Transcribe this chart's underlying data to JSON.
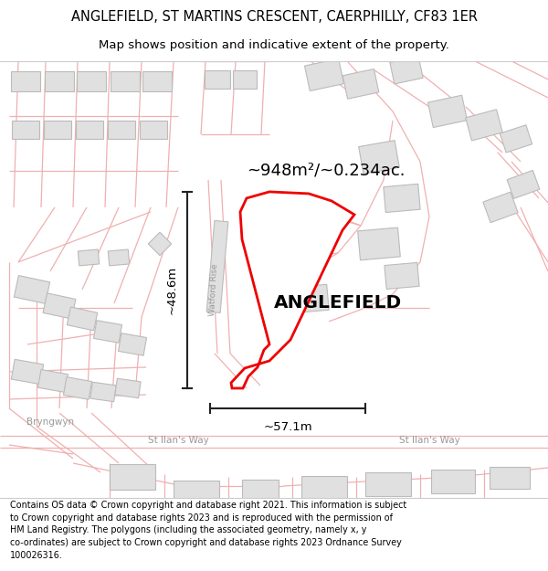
{
  "title_line1": "ANGLEFIELD, ST MARTINS CRESCENT, CAERPHILLY, CF83 1ER",
  "title_line2": "Map shows position and indicative extent of the property.",
  "footer_text": "Contains OS data © Crown copyright and database right 2021. This information is subject\nto Crown copyright and database rights 2023 and is reproduced with the permission of\nHM Land Registry. The polygons (including the associated geometry, namely x, y\nco-ordinates) are subject to Crown copyright and database rights 2023 Ordnance Survey\n100026316.",
  "property_label": "ANGLEFIELD",
  "area_label": "~948m²/~0.234ac.",
  "dim_horizontal": "~57.1m",
  "dim_vertical": "~48.6m",
  "road_label_watford": "Watford Rise",
  "road_label_stilan1": "St Ilan's Way",
  "road_label_stilan2": "St Ilan's Way",
  "road_label_bryngwyn": "Bryngwyn",
  "map_bg": "#ffffff",
  "property_edge_color": "#ee0000",
  "property_fill_color": "#ffffff",
  "building_face": "#e0e0e0",
  "building_edge": "#bbbbbb",
  "road_color": "#f0b0b0",
  "road_lw": 0.9,
  "dim_color": "#222222",
  "street_text_color": "#999999",
  "title_fontsize": 10.5,
  "subtitle_fontsize": 9.5,
  "footer_fontsize": 6.9,
  "label_fontsize": 14.5,
  "area_fontsize": 13.0,
  "dim_fontsize": 9.5,
  "street_fontsize": 7.5
}
